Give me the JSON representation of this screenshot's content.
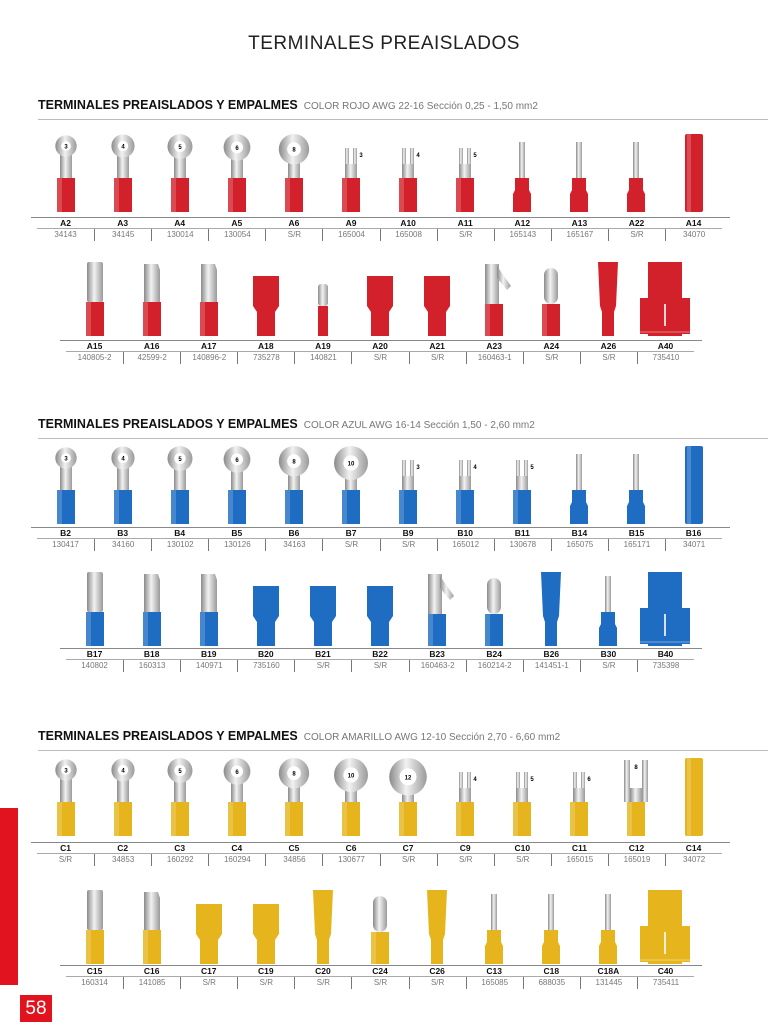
{
  "page_title": "TERMINALES PREAISLADOS",
  "page_number": "58",
  "sections": [
    {
      "title": "TERMINALES PREAISLADOS Y EMPALMES",
      "subtitle": "COLOR ROJO AWG 22-16 Sección 0,25 - 1,50 mm2",
      "color": "#d3212b",
      "rows": [
        [
          {
            "code": "A2",
            "ref": "34143",
            "kind": "ring",
            "size": "3"
          },
          {
            "code": "A3",
            "ref": "34145",
            "kind": "ring",
            "size": "4"
          },
          {
            "code": "A4",
            "ref": "130014",
            "kind": "ring",
            "size": "5"
          },
          {
            "code": "A5",
            "ref": "130054",
            "kind": "ring",
            "size": "6"
          },
          {
            "code": "A6",
            "ref": "S/R",
            "kind": "ring",
            "size": "8"
          },
          {
            "code": "A9",
            "ref": "165004",
            "kind": "fork",
            "size": "3"
          },
          {
            "code": "A10",
            "ref": "165008",
            "kind": "fork",
            "size": "4"
          },
          {
            "code": "A11",
            "ref": "S/R",
            "kind": "fork",
            "size": "5"
          },
          {
            "code": "A12",
            "ref": "165143",
            "kind": "pin"
          },
          {
            "code": "A13",
            "ref": "165167",
            "kind": "pin"
          },
          {
            "code": "A22",
            "ref": "S/R",
            "kind": "pin"
          },
          {
            "code": "A14",
            "ref": "34070",
            "kind": "butt"
          }
        ],
        [
          {
            "code": "A15",
            "ref": "140805-2",
            "kind": "male"
          },
          {
            "code": "A16",
            "ref": "42599-2",
            "kind": "female"
          },
          {
            "code": "A17",
            "ref": "140896-2",
            "kind": "female"
          },
          {
            "code": "A18",
            "ref": "735278",
            "kind": "insulated"
          },
          {
            "code": "A19",
            "ref": "140821",
            "kind": "small-pin"
          },
          {
            "code": "A20",
            "ref": "S/R",
            "kind": "insulated"
          },
          {
            "code": "A21",
            "ref": "S/R",
            "kind": "insulated"
          },
          {
            "code": "A23",
            "ref": "160463-1",
            "kind": "flag"
          },
          {
            "code": "A24",
            "ref": "S/R",
            "kind": "bullet"
          },
          {
            "code": "A26",
            "ref": "S/R",
            "kind": "long"
          },
          {
            "code": "A40",
            "ref": "735410",
            "kind": "tap"
          }
        ]
      ]
    },
    {
      "title": "TERMINALES PREAISLADOS Y EMPALMES",
      "subtitle": "COLOR AZUL AWG 16-14 Sección 1,50 - 2,60 mm2",
      "color": "#1f6dc2",
      "rows": [
        [
          {
            "code": "B2",
            "ref": "130417",
            "kind": "ring",
            "size": "3"
          },
          {
            "code": "B3",
            "ref": "34160",
            "kind": "ring",
            "size": "4"
          },
          {
            "code": "B4",
            "ref": "130102",
            "kind": "ring",
            "size": "5"
          },
          {
            "code": "B5",
            "ref": "130126",
            "kind": "ring",
            "size": "6"
          },
          {
            "code": "B6",
            "ref": "34163",
            "kind": "ring",
            "size": "8"
          },
          {
            "code": "B7",
            "ref": "S/R",
            "kind": "ring",
            "size": "10"
          },
          {
            "code": "B9",
            "ref": "S/R",
            "kind": "fork",
            "size": "3"
          },
          {
            "code": "B10",
            "ref": "165012",
            "kind": "fork",
            "size": "4"
          },
          {
            "code": "B11",
            "ref": "130678",
            "kind": "fork",
            "size": "5"
          },
          {
            "code": "B14",
            "ref": "165075",
            "kind": "pin"
          },
          {
            "code": "B15",
            "ref": "165171",
            "kind": "pin"
          },
          {
            "code": "B16",
            "ref": "34071",
            "kind": "butt"
          }
        ],
        [
          {
            "code": "B17",
            "ref": "140802",
            "kind": "male"
          },
          {
            "code": "B18",
            "ref": "160313",
            "kind": "female"
          },
          {
            "code": "B19",
            "ref": "140971",
            "kind": "female"
          },
          {
            "code": "B20",
            "ref": "735160",
            "kind": "insulated"
          },
          {
            "code": "B21",
            "ref": "S/R",
            "kind": "insulated"
          },
          {
            "code": "B22",
            "ref": "S/R",
            "kind": "insulated"
          },
          {
            "code": "B23",
            "ref": "160463-2",
            "kind": "flag"
          },
          {
            "code": "B24",
            "ref": "160214-2",
            "kind": "bullet"
          },
          {
            "code": "B26",
            "ref": "141451-1",
            "kind": "long"
          },
          {
            "code": "B30",
            "ref": "S/R",
            "kind": "pin"
          },
          {
            "code": "B40",
            "ref": "735398",
            "kind": "tap"
          }
        ]
      ]
    },
    {
      "title": "TERMINALES PREAISLADOS Y EMPALMES",
      "subtitle": "COLOR AMARILLO AWG 12-10 Sección 2,70 - 6,60 mm2",
      "color": "#e6b51e",
      "rows": [
        [
          {
            "code": "C1",
            "ref": "S/R",
            "kind": "ring",
            "size": "3"
          },
          {
            "code": "C2",
            "ref": "34853",
            "kind": "ring",
            "size": "4"
          },
          {
            "code": "C3",
            "ref": "160292",
            "kind": "ring",
            "size": "5"
          },
          {
            "code": "C4",
            "ref": "160294",
            "kind": "ring",
            "size": "6"
          },
          {
            "code": "C5",
            "ref": "34856",
            "kind": "ring",
            "size": "8"
          },
          {
            "code": "C6",
            "ref": "130677",
            "kind": "ring",
            "size": "10"
          },
          {
            "code": "C7",
            "ref": "S/R",
            "kind": "ring",
            "size": "12"
          },
          {
            "code": "C9",
            "ref": "S/R",
            "kind": "fork",
            "size": "4"
          },
          {
            "code": "C10",
            "ref": "S/R",
            "kind": "fork",
            "size": "5"
          },
          {
            "code": "C11",
            "ref": "165015",
            "kind": "fork",
            "size": "6"
          },
          {
            "code": "C12",
            "ref": "165019",
            "kind": "fork",
            "size": "8"
          },
          {
            "code": "C14",
            "ref": "34072",
            "kind": "butt"
          }
        ],
        [
          {
            "code": "C15",
            "ref": "160314",
            "kind": "male"
          },
          {
            "code": "C16",
            "ref": "141085",
            "kind": "female"
          },
          {
            "code": "C17",
            "ref": "S/R",
            "kind": "insulated"
          },
          {
            "code": "C19",
            "ref": "S/R",
            "kind": "insulated"
          },
          {
            "code": "C20",
            "ref": "S/R",
            "kind": "long"
          },
          {
            "code": "C24",
            "ref": "S/R",
            "kind": "bullet"
          },
          {
            "code": "C26",
            "ref": "S/R",
            "kind": "long"
          },
          {
            "code": "C13",
            "ref": "165085",
            "kind": "pin"
          },
          {
            "code": "C18",
            "ref": "688035",
            "kind": "pin"
          },
          {
            "code": "C18A",
            "ref": "131445",
            "kind": "pin"
          },
          {
            "code": "C40",
            "ref": "735411",
            "kind": "tap"
          }
        ]
      ]
    }
  ]
}
